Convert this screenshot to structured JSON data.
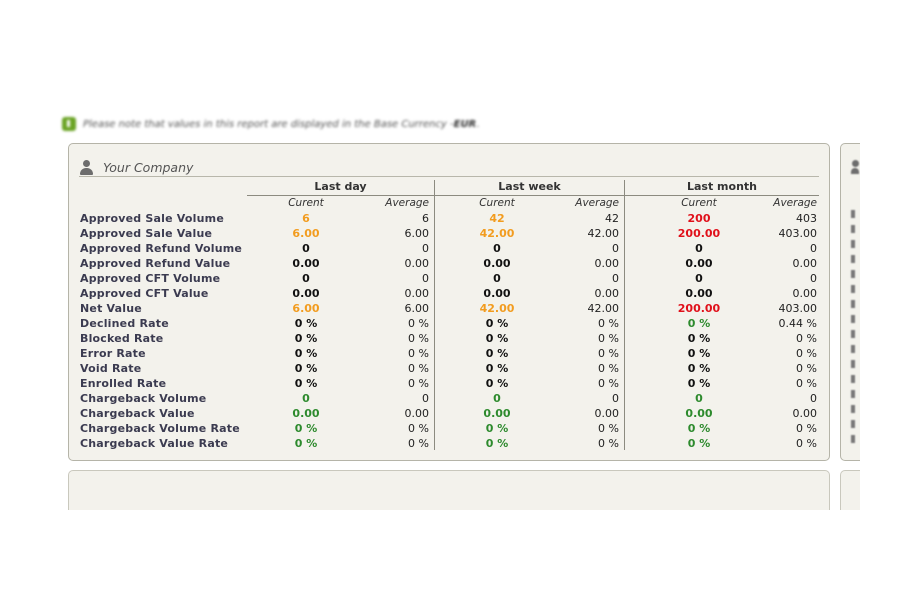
{
  "notice": {
    "text": "Please note that values in this report are displayed in the Base Currency - ",
    "currency": "EUR",
    "end": "."
  },
  "panel": {
    "title": "Your Company"
  },
  "periods": [
    {
      "label": "Last day",
      "current_label": "Curent",
      "average_label": "Average"
    },
    {
      "label": "Last week",
      "current_label": "Curent",
      "average_label": "Average"
    },
    {
      "label": "Last month",
      "current_label": "Curent",
      "average_label": "Average"
    }
  ],
  "colors": {
    "orange": "#f29c1f",
    "red": "#e0101a",
    "green": "#2d8a2d",
    "panel_bg": "#f3f2ec"
  },
  "rows": [
    {
      "label": "Approved Sale Volume",
      "values": [
        [
          "6",
          "6"
        ],
        [
          "42",
          "42"
        ],
        [
          "200",
          "403"
        ]
      ],
      "colors": [
        "orange",
        "orange",
        "red"
      ]
    },
    {
      "label": "Approved Sale Value",
      "values": [
        [
          "6.00",
          "6.00"
        ],
        [
          "42.00",
          "42.00"
        ],
        [
          "200.00",
          "403.00"
        ]
      ],
      "colors": [
        "orange",
        "orange",
        "red"
      ]
    },
    {
      "label": "Approved Refund Volume",
      "values": [
        [
          "0",
          "0"
        ],
        [
          "0",
          "0"
        ],
        [
          "0",
          "0"
        ]
      ],
      "colors": [
        "",
        "",
        ""
      ]
    },
    {
      "label": "Approved Refund Value",
      "values": [
        [
          "0.00",
          "0.00"
        ],
        [
          "0.00",
          "0.00"
        ],
        [
          "0.00",
          "0.00"
        ]
      ],
      "colors": [
        "",
        "",
        ""
      ]
    },
    {
      "label": "Approved CFT Volume",
      "values": [
        [
          "0",
          "0"
        ],
        [
          "0",
          "0"
        ],
        [
          "0",
          "0"
        ]
      ],
      "colors": [
        "",
        "",
        ""
      ]
    },
    {
      "label": "Approved CFT Value",
      "values": [
        [
          "0.00",
          "0.00"
        ],
        [
          "0.00",
          "0.00"
        ],
        [
          "0.00",
          "0.00"
        ]
      ],
      "colors": [
        "",
        "",
        ""
      ]
    },
    {
      "label": "Net Value",
      "values": [
        [
          "6.00",
          "6.00"
        ],
        [
          "42.00",
          "42.00"
        ],
        [
          "200.00",
          "403.00"
        ]
      ],
      "colors": [
        "orange",
        "orange",
        "red"
      ]
    },
    {
      "label": "Declined Rate",
      "values": [
        [
          "0 %",
          "0 %"
        ],
        [
          "0 %",
          "0 %"
        ],
        [
          "0 %",
          "0.44 %"
        ]
      ],
      "colors": [
        "",
        "",
        "green"
      ]
    },
    {
      "label": "Blocked Rate",
      "values": [
        [
          "0 %",
          "0 %"
        ],
        [
          "0 %",
          "0 %"
        ],
        [
          "0 %",
          "0 %"
        ]
      ],
      "colors": [
        "",
        "",
        ""
      ]
    },
    {
      "label": "Error Rate",
      "values": [
        [
          "0 %",
          "0 %"
        ],
        [
          "0 %",
          "0 %"
        ],
        [
          "0 %",
          "0 %"
        ]
      ],
      "colors": [
        "",
        "",
        ""
      ]
    },
    {
      "label": "Void Rate",
      "values": [
        [
          "0 %",
          "0 %"
        ],
        [
          "0 %",
          "0 %"
        ],
        [
          "0 %",
          "0 %"
        ]
      ],
      "colors": [
        "",
        "",
        ""
      ]
    },
    {
      "label": "Enrolled Rate",
      "values": [
        [
          "0 %",
          "0 %"
        ],
        [
          "0 %",
          "0 %"
        ],
        [
          "0 %",
          "0 %"
        ]
      ],
      "colors": [
        "",
        "",
        ""
      ]
    },
    {
      "label": "Chargeback Volume",
      "values": [
        [
          "0",
          "0"
        ],
        [
          "0",
          "0"
        ],
        [
          "0",
          "0"
        ]
      ],
      "colors": [
        "green",
        "green",
        "green"
      ]
    },
    {
      "label": "Chargeback Value",
      "values": [
        [
          "0.00",
          "0.00"
        ],
        [
          "0.00",
          "0.00"
        ],
        [
          "0.00",
          "0.00"
        ]
      ],
      "colors": [
        "green",
        "green",
        "green"
      ]
    },
    {
      "label": "Chargeback Volume Rate",
      "values": [
        [
          "0 %",
          "0 %"
        ],
        [
          "0 %",
          "0 %"
        ],
        [
          "0 %",
          "0 %"
        ]
      ],
      "colors": [
        "green",
        "green",
        "green"
      ]
    },
    {
      "label": "Chargeback Value Rate",
      "values": [
        [
          "0 %",
          "0 %"
        ],
        [
          "0 %",
          "0 %"
        ],
        [
          "0 %",
          "0 %"
        ]
      ],
      "colors": [
        "green",
        "green",
        "green"
      ]
    }
  ]
}
